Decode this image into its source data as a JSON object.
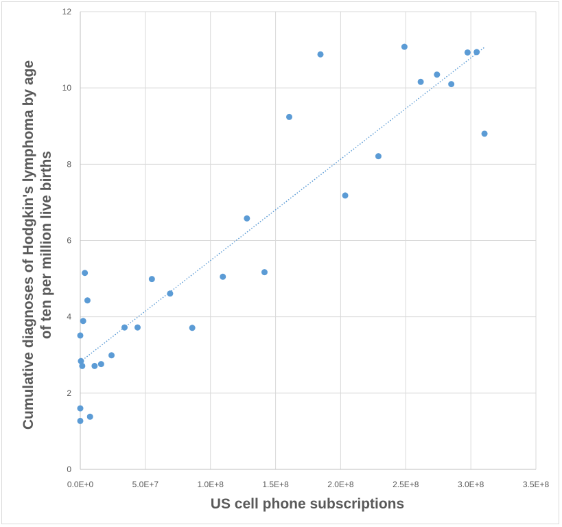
{
  "chart_data": {
    "type": "scatter",
    "title": "",
    "xlabel": "US cell phone subscriptions",
    "ylabel_line1": "Cumulative diagnoses of Hodgkin's lymphoma by age",
    "ylabel_line2": "of ten per million live births",
    "xlim": [
      0,
      350000000
    ],
    "ylim": [
      0,
      12
    ],
    "x_ticks": [
      0,
      50000000,
      100000000,
      150000000,
      200000000,
      250000000,
      300000000,
      350000000
    ],
    "x_tick_labels": [
      "0.0E+0",
      "5.0E+7",
      "1.0E+8",
      "1.5E+8",
      "2.0E+8",
      "2.5E+8",
      "3.0E+8",
      "3.5E+8"
    ],
    "y_ticks": [
      0,
      2,
      4,
      6,
      8,
      10,
      12
    ],
    "y_tick_labels": [
      "0",
      "2",
      "4",
      "6",
      "8",
      "10",
      "12"
    ],
    "grid": true,
    "legend": "none",
    "series_color": "#5b9bd5",
    "points": [
      {
        "x": 0,
        "y": 1.27
      },
      {
        "x": 0,
        "y": 1.6
      },
      {
        "x": 500000,
        "y": 2.84
      },
      {
        "x": 0,
        "y": 3.51
      },
      {
        "x": 1500000,
        "y": 2.71
      },
      {
        "x": 2200000,
        "y": 3.89
      },
      {
        "x": 3500000,
        "y": 5.15
      },
      {
        "x": 5500000,
        "y": 4.43
      },
      {
        "x": 7500000,
        "y": 1.38
      },
      {
        "x": 11000000,
        "y": 2.71
      },
      {
        "x": 16000000,
        "y": 2.76
      },
      {
        "x": 24000000,
        "y": 2.99
      },
      {
        "x": 34000000,
        "y": 3.72
      },
      {
        "x": 44000000,
        "y": 3.72
      },
      {
        "x": 55000000,
        "y": 4.99
      },
      {
        "x": 69000000,
        "y": 4.61
      },
      {
        "x": 86000000,
        "y": 3.71
      },
      {
        "x": 109500000,
        "y": 5.05
      },
      {
        "x": 128000000,
        "y": 6.58
      },
      {
        "x": 141500000,
        "y": 5.17
      },
      {
        "x": 160500000,
        "y": 9.24
      },
      {
        "x": 184500000,
        "y": 10.88
      },
      {
        "x": 203500000,
        "y": 7.18
      },
      {
        "x": 229000000,
        "y": 8.21
      },
      {
        "x": 249000000,
        "y": 11.08
      },
      {
        "x": 261500000,
        "y": 10.16
      },
      {
        "x": 274000000,
        "y": 10.35
      },
      {
        "x": 285000000,
        "y": 10.1
      },
      {
        "x": 297500000,
        "y": 10.93
      },
      {
        "x": 304500000,
        "y": 10.94
      },
      {
        "x": 310500000,
        "y": 8.8
      }
    ],
    "trendline": {
      "style": "dotted",
      "x": [
        0,
        311000000
      ],
      "y": [
        2.82,
        11.08
      ]
    }
  }
}
